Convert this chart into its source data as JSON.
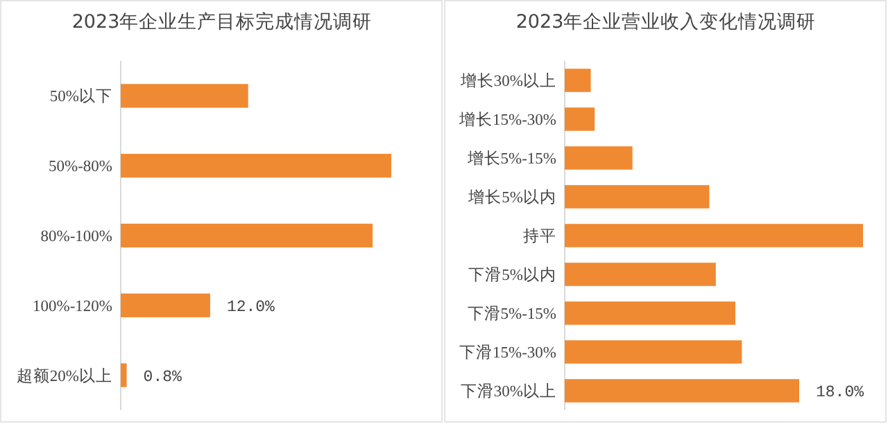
{
  "chart_data": [
    {
      "type": "bar",
      "orientation": "horizontal",
      "title": "2023年企业生产目标完成情况调研",
      "categories": [
        "50%以下",
        "50%-80%",
        "80%-100%",
        "100%-120%",
        "超额20%以上"
      ],
      "values": [
        17.1,
        36.3,
        33.8,
        12.0,
        0.8
      ],
      "value_labels": [
        null,
        null,
        null,
        "12.0%",
        "0.8%"
      ],
      "color": "#f08a32"
    },
    {
      "type": "bar",
      "orientation": "horizontal",
      "title": "2023年企业营业收入变化情况调研",
      "categories": [
        "增长30%以上",
        "增长15%-30%",
        "增长5%-15%",
        "增长5%以内",
        "持平",
        "下滑5%以内",
        "下滑5%-15%",
        "下滑15%-30%",
        "下滑30%以上"
      ],
      "values": [
        2.0,
        2.3,
        5.2,
        11.1,
        22.9,
        11.6,
        13.1,
        13.6,
        18.0
      ],
      "value_labels": [
        null,
        null,
        null,
        null,
        null,
        null,
        null,
        null,
        "18.0%"
      ],
      "color": "#f08a32"
    }
  ]
}
